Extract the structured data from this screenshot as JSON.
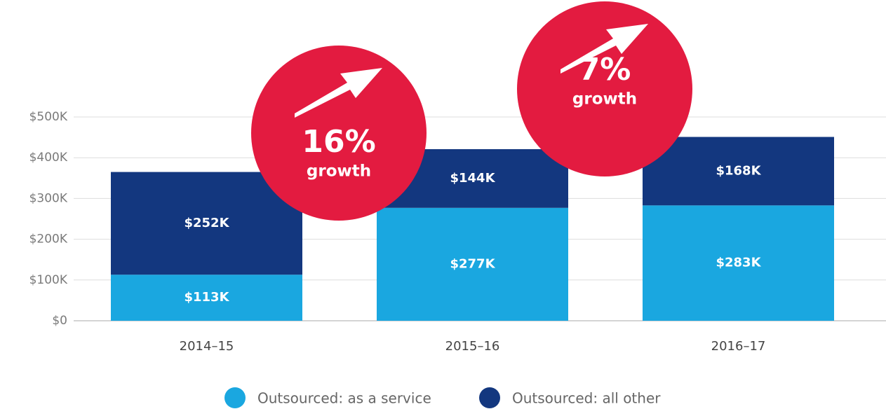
{
  "chart_data": {
    "type": "bar",
    "stacked": true,
    "categories": [
      "2014–15",
      "2015–16",
      "2016–17"
    ],
    "series": [
      {
        "name": "Outsourced: as a service",
        "color": "#1aa7e0",
        "values": [
          113000,
          277000,
          283000
        ],
        "value_labels": [
          "$113K",
          "$277K",
          "$283K"
        ]
      },
      {
        "name": "Outsourced: all other",
        "color": "#13377f",
        "values": [
          252000,
          144000,
          168000
        ],
        "value_labels": [
          "$252K",
          "$144K",
          "$168K"
        ]
      }
    ],
    "ylim": [
      0,
      500000
    ],
    "yticks": [
      {
        "value": 0,
        "label": "$0"
      },
      {
        "value": 100000,
        "label": "$100K"
      },
      {
        "value": 200000,
        "label": "$200K"
      },
      {
        "value": 300000,
        "label": "$300K"
      },
      {
        "value": 400000,
        "label": "$400K"
      },
      {
        "value": 500000,
        "label": "$500K"
      }
    ],
    "grid": true,
    "legend": "bottom",
    "annotations": [
      {
        "text": "16%",
        "subtext": "growth",
        "color": "#e31b40"
      },
      {
        "text": "7%",
        "subtext": "growth",
        "color": "#e31b40"
      }
    ]
  }
}
